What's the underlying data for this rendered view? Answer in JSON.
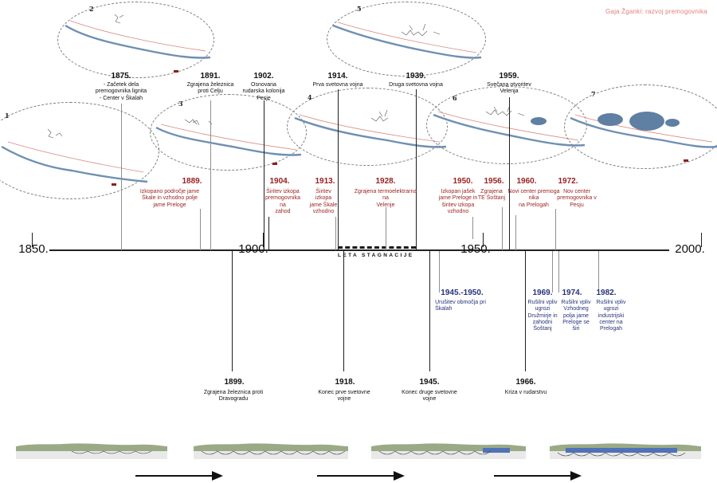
{
  "header": {
    "author": "Gaja Žganki: razvoj premogovnika"
  },
  "maps": [
    {
      "num": "1"
    },
    {
      "num": "2"
    },
    {
      "num": "3"
    },
    {
      "num": "4"
    },
    {
      "num": "5"
    },
    {
      "num": "6"
    },
    {
      "num": "7"
    }
  ],
  "axis": {
    "labels": [
      "1850.",
      "1900.",
      "1950.",
      "2000."
    ],
    "stagnation": "LETA STAGNACIJE"
  },
  "events_top_black": [
    {
      "year": "1875.",
      "desc": "- Začetek dela\npremogovnika lignita\n- Center v Škalah"
    },
    {
      "year": "1891.",
      "desc": "Zgrajena železnica\nproti Celju"
    },
    {
      "year": "1902.",
      "desc": "Osnovana\nrudarska kolonija\nPesje"
    },
    {
      "year": "1914.",
      "desc": "Prva svetovna vojna"
    },
    {
      "year": "1939.",
      "desc": "Druga svetovna vojna"
    },
    {
      "year": "1959.",
      "desc": "Svečana otvoritev\nVelenja"
    }
  ],
  "events_top_red": [
    {
      "year": "1889.",
      "desc": "Izkopano področje jame\nŠkale in vzhodno polje\njame Preloge"
    },
    {
      "year": "1904.",
      "desc": "Širitev izkopa\npremogovnika\nna\nzahod"
    },
    {
      "year": "1913.",
      "desc": "Širitev\nizkopa\njame Škale\nvzhodno"
    },
    {
      "year": "1928.",
      "desc": "Zgrajena termoelektrarna\nna\nVelenje"
    },
    {
      "year": "1950.",
      "desc": "Izkopan jašek\njame Preloge in\nširitev izkopa\nvzhodno"
    },
    {
      "year": "1956.",
      "desc": "Zgrajena\nTE Šoštanj"
    },
    {
      "year": "1960.",
      "desc": "Novi center premoga\nnika\nna Prelogah"
    },
    {
      "year": "1972.",
      "desc": "Nov center\npremogovnika v\nPesju"
    }
  ],
  "events_bottom_blue": [
    {
      "year": "1945.-1950.",
      "desc": "Urušitev območja pri\nŠkalah"
    },
    {
      "year": "1969.",
      "desc": "Rušilni vpliv\nugrozi\nDružmirje in\nzahodni\nŠoštanj"
    },
    {
      "year": "1974.",
      "desc": "Rušilni vpliv\nVzhodneg\npolja jame\nPreloge se\nširi"
    },
    {
      "year": "1982.",
      "desc": "Rušilni vpliv\nugrozi\nindustrijski\ncenter na\nPrelogah"
    }
  ],
  "events_bottom_black": [
    {
      "year": "1899.",
      "desc": "Zgrajena železnica proti\nDravogradu"
    },
    {
      "year": "1918.",
      "desc": "Konec prve svetovne\nvojne"
    },
    {
      "year": "1945.",
      "desc": "Konec druge svetovne\nvojne"
    },
    {
      "year": "1966.",
      "desc": "Kriza v rudarstvu"
    }
  ],
  "colors": {
    "river": "#6f8fb3",
    "road": "#d98880",
    "lake": "#5f7fa3",
    "terrain": "#9aaa86",
    "red_text": "#9a1f1f",
    "blue_text": "#26337a"
  }
}
